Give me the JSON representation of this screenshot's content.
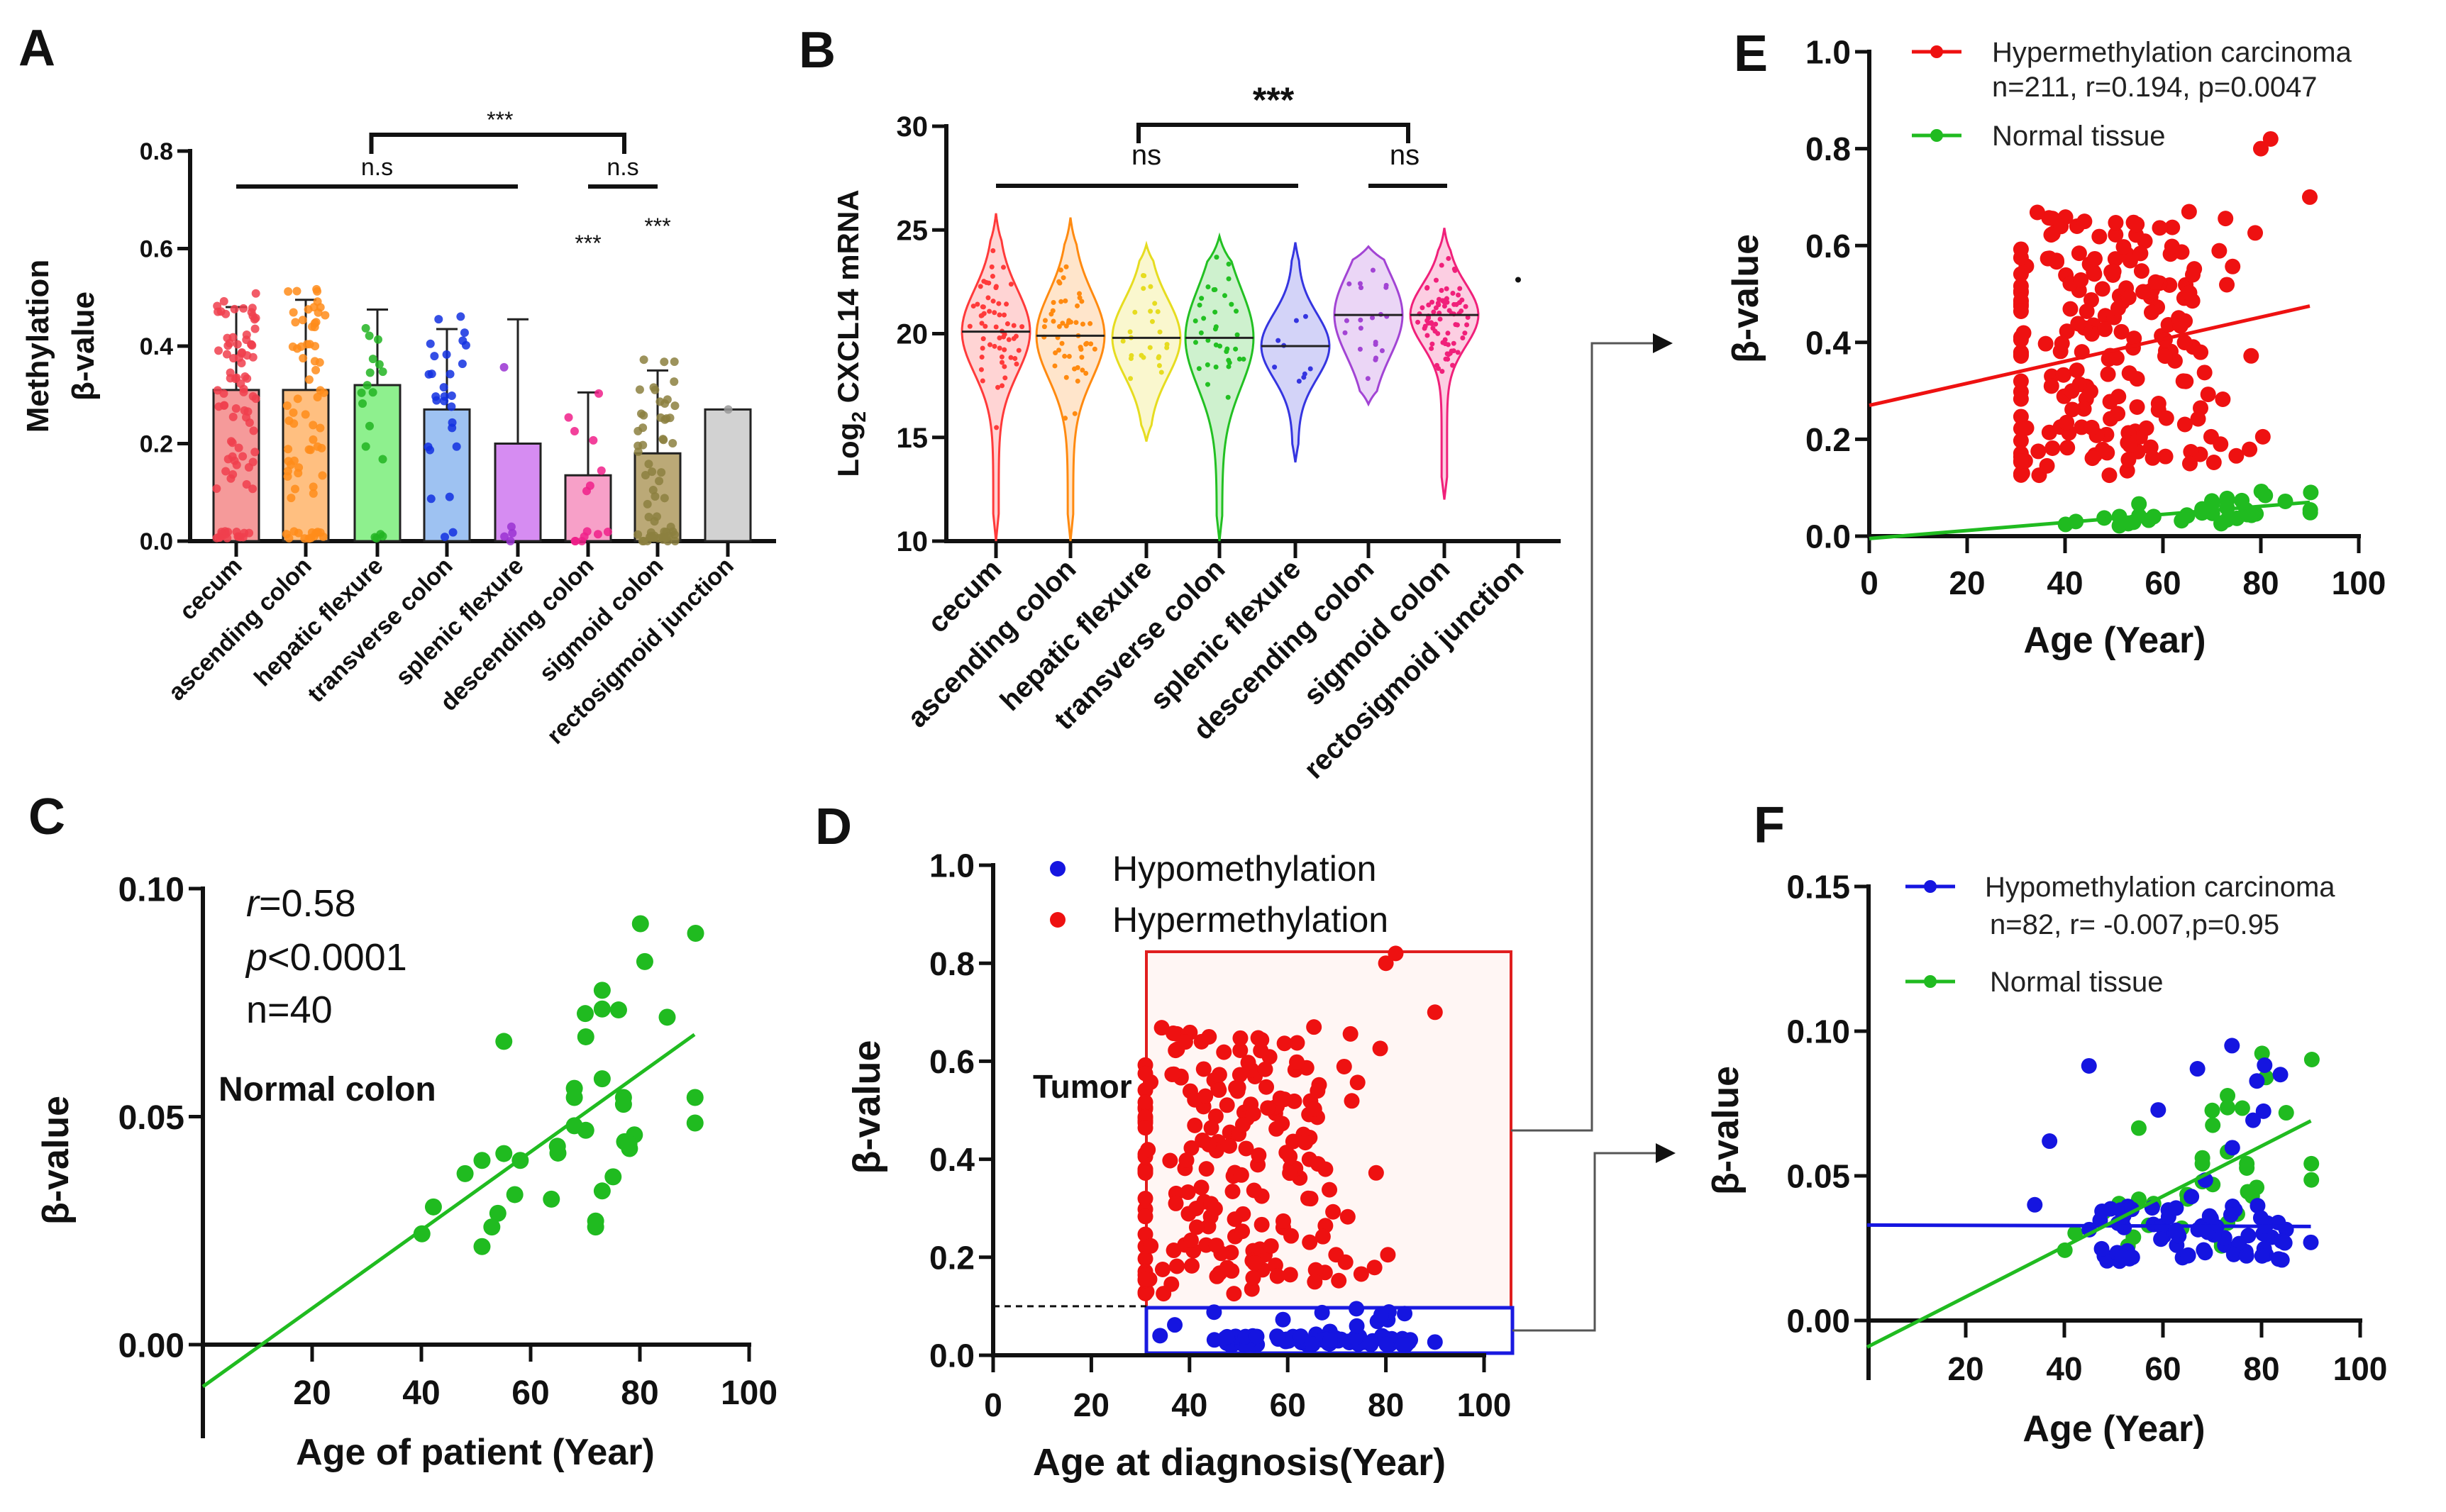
{
  "chart_data": [
    {
      "panel": "A",
      "type": "bar",
      "categories": [
        "cecum",
        "ascending colon",
        "hepatic flexure",
        "transverse colon",
        "splenic flexure",
        "descending colon",
        "sigmoid colon",
        "rectosigmoid junction"
      ],
      "values": [
        0.31,
        0.31,
        0.32,
        0.27,
        0.2,
        0.135,
        0.18,
        0.27
      ],
      "error_sd": [
        0.17,
        0.185,
        0.155,
        0.165,
        0.255,
        0.17,
        0.17,
        null
      ],
      "ylabel": [
        "Methylation",
        "β-value"
      ],
      "ylim": [
        0,
        0.8
      ],
      "yticks": [
        "0.0",
        "0.2",
        "0.4",
        "0.6",
        "0.8"
      ],
      "bar_colors": [
        "#f59a9a",
        "#ffbf80",
        "#8ef08e",
        "#9ec2f2",
        "#d68cf2",
        "#f7a0c8",
        "#bba977",
        "#d2d2d2"
      ],
      "dot_colors": [
        "#f0404e",
        "#ff8c1a",
        "#22b422",
        "#1230e0",
        "#9a32d2",
        "#f0208a",
        "#8c8040",
        "#999999"
      ],
      "significance": {
        "groups": [
          {
            "label": "n.s",
            "from": 0,
            "to": 4
          },
          {
            "label": "n.s",
            "from": 5,
            "to": 6
          }
        ],
        "between_groups": "***",
        "single": [
          {
            "index": 5,
            "label": "***"
          },
          {
            "index": 6,
            "label": "***"
          }
        ]
      }
    },
    {
      "panel": "B",
      "type": "violin",
      "categories": [
        "cecum",
        "ascending colon",
        "hepatic flexure",
        "transverse colon",
        "splenic flexure",
        "descending colon",
        "sigmoid colon",
        "rectosigmoid junction"
      ],
      "median": [
        20.1,
        19.9,
        19.8,
        19.8,
        19.4,
        20.9,
        20.9,
        22.6
      ],
      "q1": [
        18.8,
        18.8,
        18.5,
        18.0,
        18.6,
        19.3,
        19.8,
        22.6
      ],
      "q3": [
        21.5,
        21.6,
        21.0,
        21.2,
        20.7,
        22.0,
        21.8,
        22.6
      ],
      "min": [
        10,
        10,
        14.8,
        10,
        13.8,
        16.6,
        12,
        22.6
      ],
      "max": [
        25.8,
        25.6,
        24.3,
        24.7,
        24.4,
        24.2,
        25.1,
        22.6
      ],
      "ylabel": {
        "prefix": "Log",
        "sub": "2",
        "rest": " CXCL14 mRNA"
      },
      "ylim": [
        10,
        30
      ],
      "yticks": [
        "10",
        "15",
        "20",
        "25",
        "30"
      ],
      "colors": [
        "#ff3a3a",
        "#ff8a10",
        "#e6dc20",
        "#22c022",
        "#3535e0",
        "#a244d4",
        "#f0207a",
        "#111111"
      ],
      "significance": {
        "groups": [
          {
            "label": "ns",
            "from": 0,
            "to": 4
          },
          {
            "label": "ns",
            "from": 5,
            "to": 6
          }
        ],
        "between_groups": "***"
      }
    },
    {
      "panel": "C",
      "type": "scatter",
      "title": "Normal colon",
      "stats": {
        "r_label": "r",
        "r_value": "=0.58",
        "p_label": "p",
        "p_value": "<0.0001",
        "n": "n=40"
      },
      "xlabel": "Age of patient (Year)",
      "ylabel": "β-value",
      "xlim": [
        0,
        100
      ],
      "ylim": [
        -0.02,
        0.1
      ],
      "xticks": [
        "20",
        "40",
        "60",
        "80",
        "100"
      ],
      "yticks": [
        "0.00",
        "0.05",
        "0.10"
      ],
      "color": "#20bb20",
      "points": [
        [
          80.1,
          0.0923
        ],
        [
          90.2,
          0.0902
        ],
        [
          80.9,
          0.084
        ],
        [
          73.1,
          0.0777
        ],
        [
          70,
          0.0726
        ],
        [
          73.1,
          0.0736
        ],
        [
          76.1,
          0.0734
        ],
        [
          85,
          0.0718
        ],
        [
          55.1,
          0.0665
        ],
        [
          70.1,
          0.0675
        ],
        [
          73.1,
          0.0583
        ],
        [
          68,
          0.0562
        ],
        [
          68,
          0.0542
        ],
        [
          77,
          0.0542
        ],
        [
          77,
          0.0527
        ],
        [
          90.1,
          0.0542
        ],
        [
          90.1,
          0.0486
        ],
        [
          68,
          0.048
        ],
        [
          70.1,
          0.047
        ],
        [
          79,
          0.046
        ],
        [
          77.2,
          0.0445
        ],
        [
          78.1,
          0.043
        ],
        [
          64.9,
          0.0435
        ],
        [
          55.1,
          0.0419
        ],
        [
          58.1,
          0.0404
        ],
        [
          51.1,
          0.0404
        ],
        [
          48,
          0.0375
        ],
        [
          75.1,
          0.0368
        ],
        [
          57.1,
          0.0329
        ],
        [
          63.8,
          0.0319
        ],
        [
          73.1,
          0.0337
        ],
        [
          42.2,
          0.0302
        ],
        [
          54,
          0.0288
        ],
        [
          52.9,
          0.0258
        ],
        [
          71.9,
          0.0271
        ],
        [
          71.9,
          0.0258
        ],
        [
          40.1,
          0.0243
        ],
        [
          51.1,
          0.0215
        ],
        [
          78,
          0.044
        ],
        [
          65,
          0.042
        ]
      ],
      "fit": [
        [
          0,
          -0.0092
        ],
        [
          90,
          0.068
        ]
      ]
    },
    {
      "panel": "D",
      "type": "scatter",
      "annotation": "Tumor",
      "legend": [
        "Hypomethylation",
        "Hypermethylation"
      ],
      "xlabel": "Age at diagnosis(Year)",
      "ylabel": "β-value",
      "xlim": [
        0,
        100
      ],
      "ylim": [
        0,
        1.0
      ],
      "xticks": [
        "0",
        "20",
        "40",
        "60",
        "80",
        "100"
      ],
      "yticks": [
        "0.0",
        "0.2",
        "0.4",
        "0.6",
        "0.8",
        "1.0"
      ],
      "threshold": 0.1,
      "colors": {
        "hypo": "#1515e0",
        "hyper": "#ee1111"
      },
      "hyper_range": {
        "age": [
          31,
          90
        ],
        "beta": [
          0.1,
          0.82
        ]
      },
      "hypo_range": {
        "age": [
          33,
          90
        ],
        "beta": [
          0.015,
          0.095
        ]
      }
    },
    {
      "panel": "E",
      "type": "scatter",
      "legend": [
        {
          "label": "Hypermethylation carcinoma",
          "stats": "n=211, r=0.194, p=0.0047",
          "color": "#ee1111"
        },
        {
          "label": "Normal tissue",
          "color": "#20bb20"
        }
      ],
      "xlabel": "Age (Year)",
      "ylabel": "β-value",
      "xlim": [
        0,
        100
      ],
      "ylim": [
        0,
        1.0
      ],
      "xticks": [
        "0",
        "20",
        "40",
        "60",
        "80",
        "100"
      ],
      "yticks": [
        "0.0",
        "0.2",
        "0.4",
        "0.6",
        "0.8",
        "1.0"
      ],
      "fits": {
        "hyper": [
          [
            0,
            0.27
          ],
          [
            90,
            0.475
          ]
        ],
        "normal": [
          [
            0,
            -0.005
          ],
          [
            90,
            0.07
          ]
        ]
      }
    },
    {
      "panel": "F",
      "type": "scatter",
      "legend": [
        {
          "label": "Hypomethylation carcinoma",
          "stats": "n=82, r= -0.007,p=0.95",
          "color": "#1515e0"
        },
        {
          "label": "Normal tissue",
          "color": "#20bb20"
        }
      ],
      "xlabel": "Age (Year)",
      "ylabel": "β-value",
      "xlim": [
        0,
        100
      ],
      "ylim": [
        -0.01,
        0.15
      ],
      "xticks": [
        "20",
        "40",
        "60",
        "80",
        "100"
      ],
      "yticks": [
        "0.00",
        "0.05",
        "0.10",
        "0.15"
      ],
      "fits": {
        "hypo": [
          [
            0,
            0.033
          ],
          [
            90,
            0.0325
          ]
        ],
        "normal": [
          [
            0,
            -0.0092
          ],
          [
            90,
            0.069
          ]
        ]
      }
    }
  ]
}
